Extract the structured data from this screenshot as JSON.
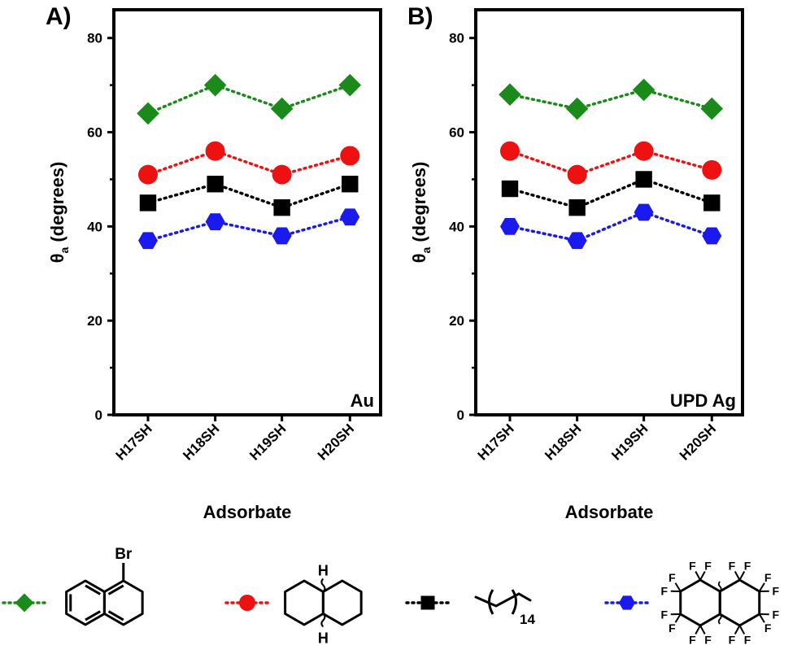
{
  "chart_data": [
    {
      "type": "line",
      "panel_label": "A)",
      "annotation": "Au",
      "xlabel": "Adsorbate",
      "ylabel": "θ",
      "ylabel_subscript": "a",
      "ylabel_unit": "(degrees)",
      "categories": [
        "H17SH",
        "H18SH",
        "H19SH",
        "H20SH"
      ],
      "ylim": [
        0,
        86
      ],
      "yticks": [
        "0",
        "20",
        "40",
        "60",
        "80"
      ],
      "grid": false,
      "series": [
        {
          "marker": "diamond",
          "color": "#1a8a1a",
          "values": [
            64,
            70,
            65,
            70
          ]
        },
        {
          "marker": "circle",
          "color": "#ee1111",
          "values": [
            51,
            56,
            51,
            55
          ]
        },
        {
          "marker": "square",
          "color": "#000000",
          "values": [
            45,
            49,
            44,
            49
          ]
        },
        {
          "marker": "hexagon",
          "color": "#1a1aee",
          "values": [
            37,
            41,
            38,
            42
          ]
        }
      ]
    },
    {
      "type": "line",
      "panel_label": "B)",
      "annotation": "UPD Ag",
      "xlabel": "Adsorbate",
      "ylabel": "θ",
      "ylabel_subscript": "a",
      "ylabel_unit": "(degrees)",
      "categories": [
        "H17SH",
        "H18SH",
        "H19SH",
        "H20SH"
      ],
      "ylim": [
        0,
        86
      ],
      "yticks": [
        "0",
        "20",
        "40",
        "60",
        "80"
      ],
      "grid": false,
      "series": [
        {
          "marker": "diamond",
          "color": "#1a8a1a",
          "values": [
            68,
            65,
            69,
            65
          ]
        },
        {
          "marker": "circle",
          "color": "#ee1111",
          "values": [
            56,
            51,
            56,
            52
          ]
        },
        {
          "marker": "square",
          "color": "#000000",
          "values": [
            48,
            44,
            50,
            45
          ]
        },
        {
          "marker": "hexagon",
          "color": "#1a1aee",
          "values": [
            40,
            37,
            43,
            38
          ]
        }
      ]
    }
  ],
  "legend": {
    "structure_labels": {
      "bromo": "Br",
      "hydrogen_top": "H",
      "hydrogen_bottom": "H",
      "chain_subscript": "14",
      "fluorine": "F"
    }
  }
}
